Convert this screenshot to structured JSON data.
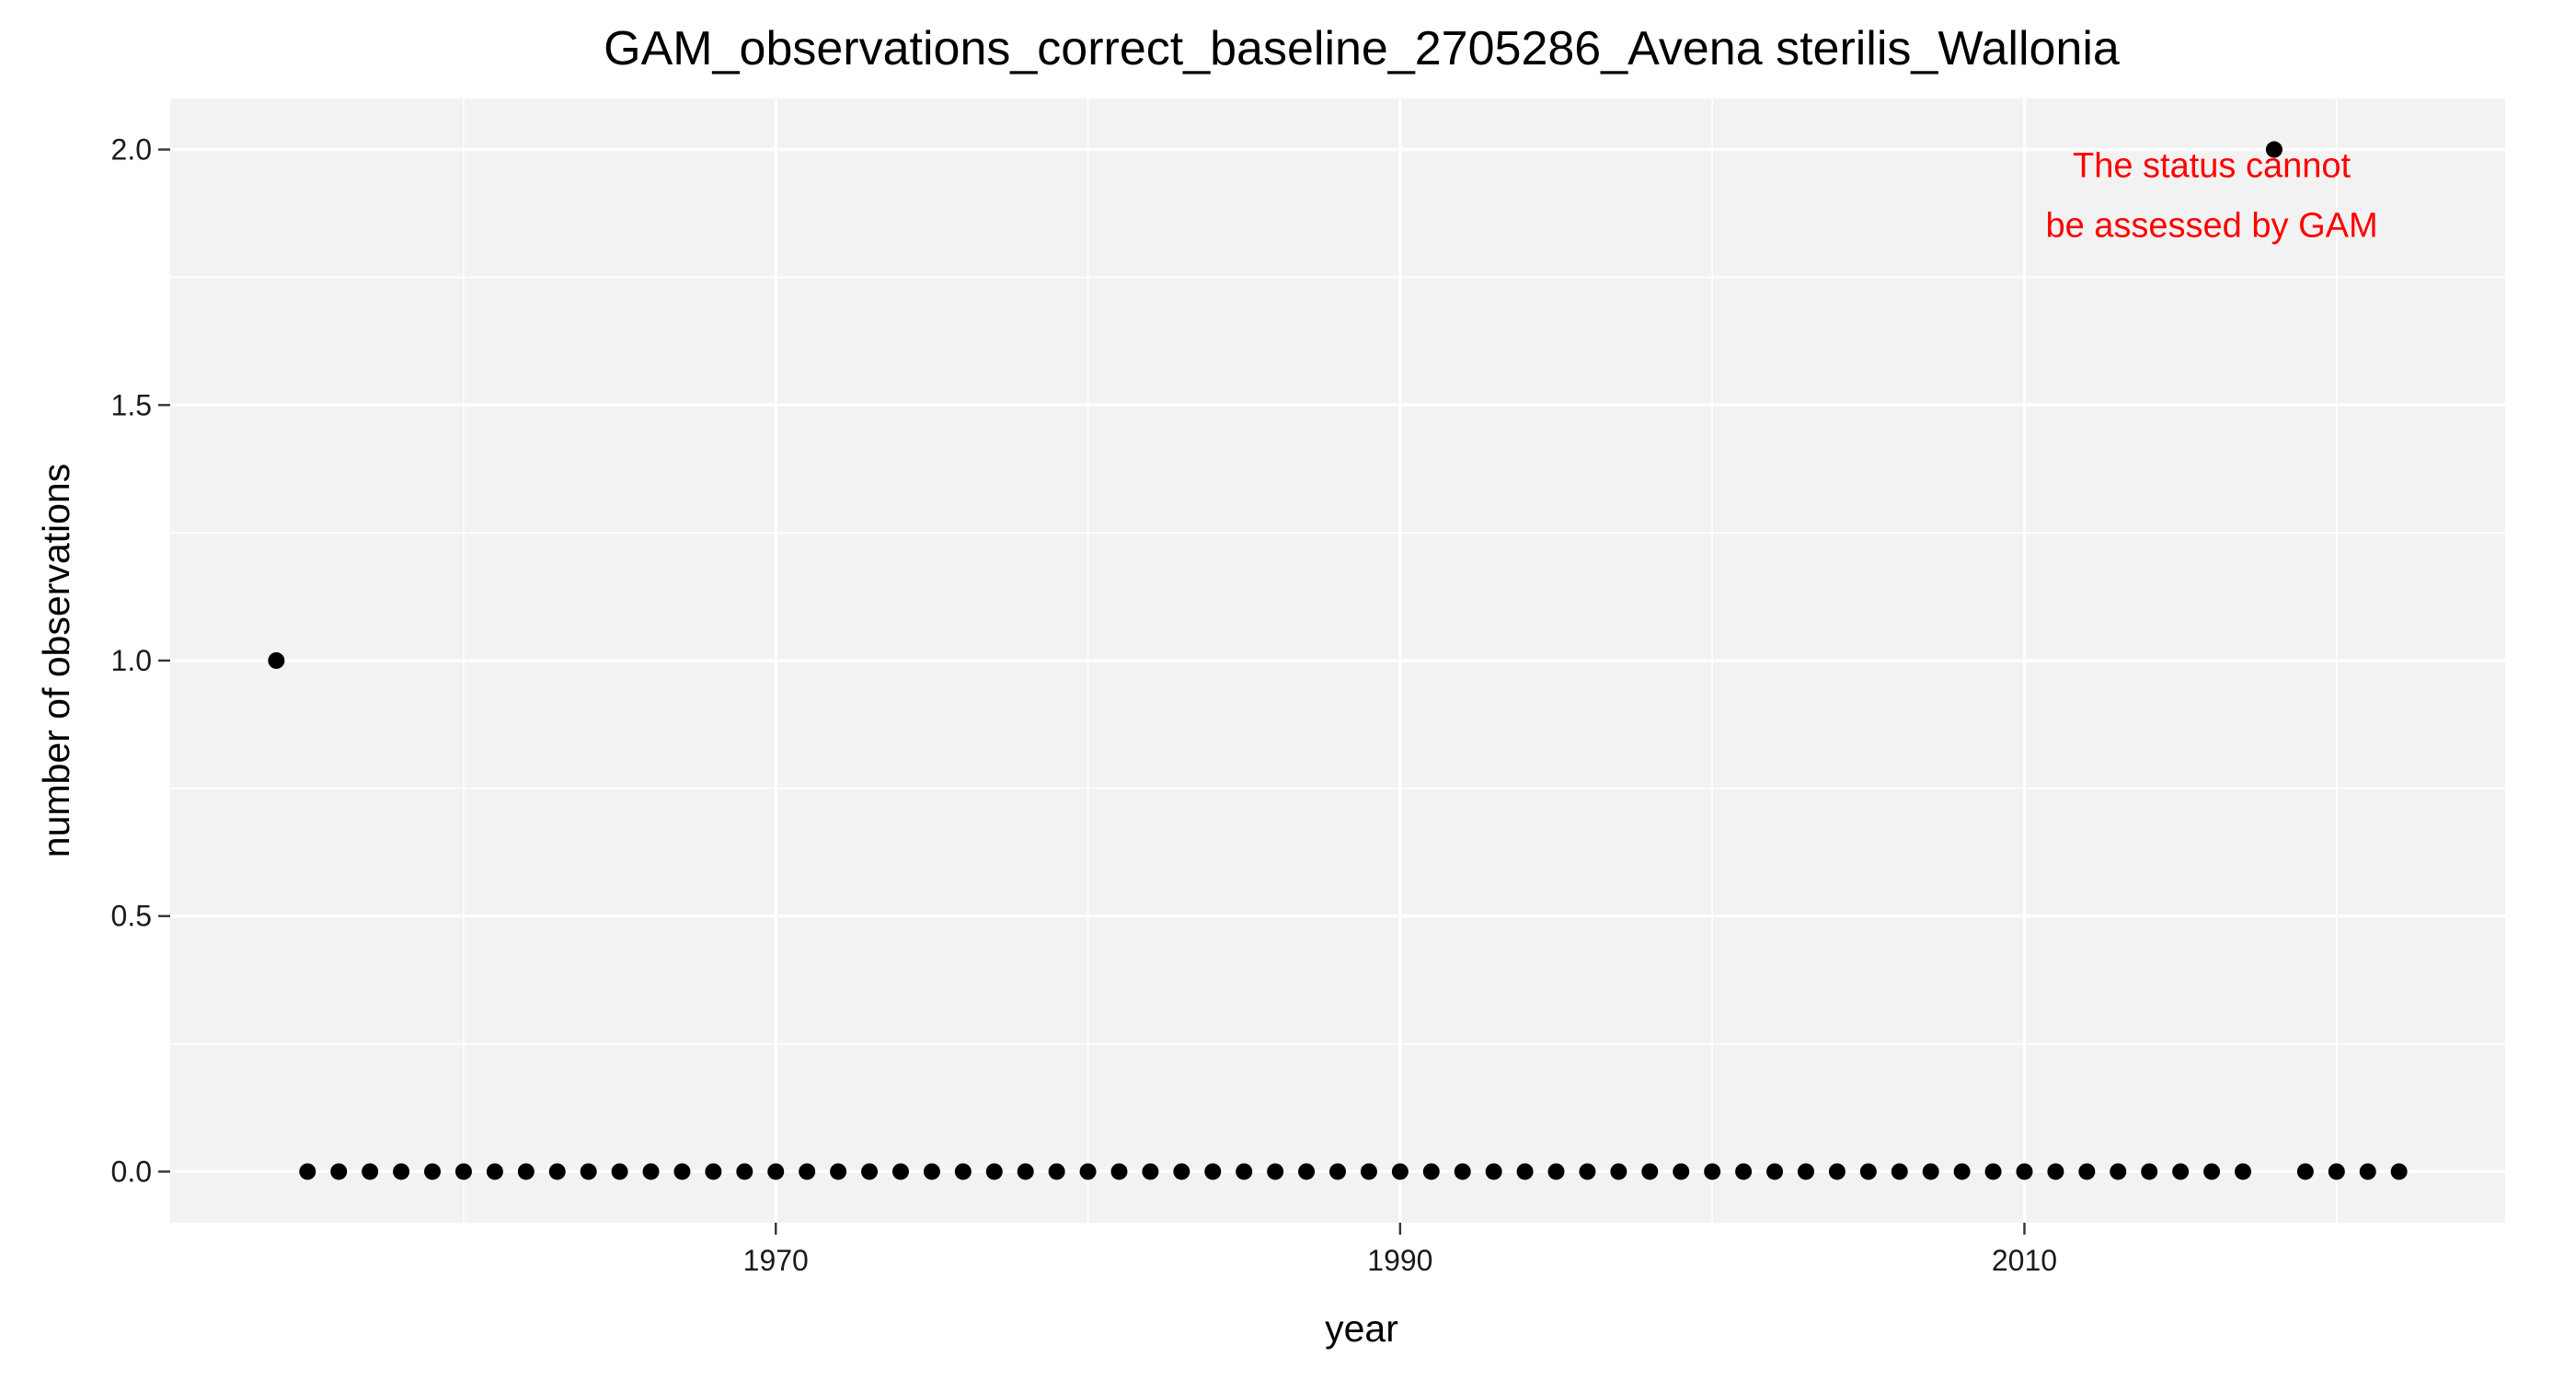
{
  "chart_data": {
    "type": "scatter",
    "title": "GAM_observations_correct_baseline_2705286_Avena sterilis_Wallonia",
    "xlabel": "year",
    "ylabel": "number of observations",
    "x": [
      1954,
      1955,
      1956,
      1957,
      1958,
      1959,
      1960,
      1961,
      1962,
      1963,
      1964,
      1965,
      1966,
      1967,
      1968,
      1969,
      1970,
      1971,
      1972,
      1973,
      1974,
      1975,
      1976,
      1977,
      1978,
      1979,
      1980,
      1981,
      1982,
      1983,
      1984,
      1985,
      1986,
      1987,
      1988,
      1989,
      1990,
      1991,
      1992,
      1993,
      1994,
      1995,
      1996,
      1997,
      1998,
      1999,
      2000,
      2001,
      2002,
      2003,
      2004,
      2005,
      2006,
      2007,
      2008,
      2009,
      2010,
      2011,
      2012,
      2013,
      2014,
      2015,
      2016,
      2017,
      2018,
      2019,
      2020,
      2021,
      2022
    ],
    "y": [
      1,
      0,
      0,
      0,
      0,
      0,
      0,
      0,
      0,
      0,
      0,
      0,
      0,
      0,
      0,
      0,
      0,
      0,
      0,
      0,
      0,
      0,
      0,
      0,
      0,
      0,
      0,
      0,
      0,
      0,
      0,
      0,
      0,
      0,
      0,
      0,
      0,
      0,
      0,
      0,
      0,
      0,
      0,
      0,
      0,
      0,
      0,
      0,
      0,
      0,
      0,
      0,
      0,
      0,
      0,
      0,
      0,
      0,
      0,
      0,
      0,
      0,
      0,
      0,
      2,
      0,
      0,
      0,
      0
    ],
    "xlim": [
      1950.6,
      2025.4
    ],
    "ylim": [
      -0.1,
      2.1
    ],
    "xticks": [
      1970,
      1990,
      2010
    ],
    "xtick_labels": [
      "1970",
      "1990",
      "2010"
    ],
    "yticks": [
      0,
      0.5,
      1,
      1.5,
      2
    ],
    "ytick_labels": [
      "0.0",
      "0.5",
      "1.0",
      "1.5",
      "2.0"
    ],
    "grid": true,
    "annotation": {
      "lines": [
        "The status cannot",
        "be assessed by GAM"
      ],
      "color": "#ff0000"
    },
    "colors": {
      "panel": "#f2f2f2",
      "grid": "#ffffff",
      "point": "#000000"
    }
  }
}
